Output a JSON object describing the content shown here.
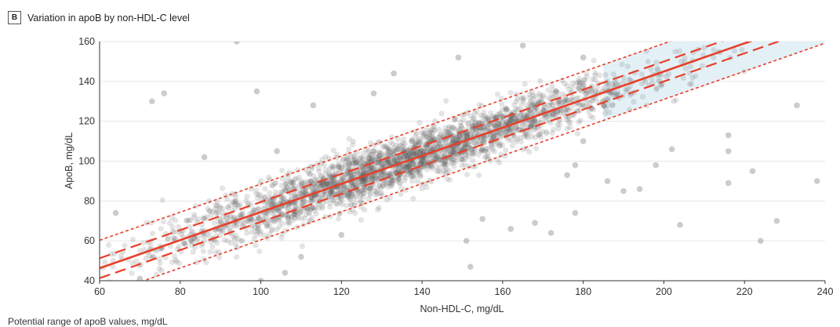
{
  "panel": {
    "letter": "B",
    "title": "Variation in apoB by non-HDL-C level"
  },
  "footer": {
    "legend_text": "Potential range of apoB values, mg/dL"
  },
  "colors": {
    "points": "#555555",
    "fit_line": "#e8402a",
    "shaded_band": "#e3f1f7",
    "grid": "#e6e6e6"
  },
  "chart_data": {
    "type": "scatter",
    "xlabel": "Non-HDL-C, mg/dL",
    "ylabel": "ApoB, mg/dL",
    "xlim": [
      60,
      240
    ],
    "ylim": [
      40,
      160
    ],
    "xticks": [
      "60",
      "80",
      "100",
      "120",
      "140",
      "160",
      "180",
      "200",
      "220",
      "240"
    ],
    "yticks": [
      "40",
      "60",
      "80",
      "100",
      "120",
      "140",
      "160"
    ],
    "grid": "horizontal",
    "fit_line": {
      "slope": 0.705,
      "intercept": 4
    },
    "inner_interval": {
      "offset": 5
    },
    "outer_interval": {
      "offset": 14
    },
    "shaded_band": {
      "x_from": 185,
      "x_to": 240
    },
    "point_cloud": {
      "x_min": 60,
      "x_max": 240,
      "x_center": 135,
      "x_sd": 30,
      "residual_sd": 6.5,
      "outliers": [
        [
          73,
          130
        ],
        [
          76,
          134
        ],
        [
          94,
          160
        ],
        [
          99,
          135
        ],
        [
          104,
          105
        ],
        [
          113,
          128
        ],
        [
          120,
          63
        ],
        [
          128,
          134
        ],
        [
          133,
          144
        ],
        [
          149,
          152
        ],
        [
          151,
          60
        ],
        [
          152,
          47
        ],
        [
          162,
          66
        ],
        [
          165,
          158
        ],
        [
          172,
          64
        ],
        [
          176,
          93
        ],
        [
          178,
          98
        ],
        [
          178,
          74
        ],
        [
          180,
          152
        ],
        [
          186,
          90
        ],
        [
          194,
          86
        ],
        [
          198,
          98
        ],
        [
          202,
          106
        ],
        [
          204,
          68
        ],
        [
          216,
          105
        ],
        [
          216,
          89
        ],
        [
          216,
          113
        ],
        [
          222,
          95
        ],
        [
          224,
          60
        ],
        [
          228,
          70
        ],
        [
          233,
          128
        ],
        [
          238,
          90
        ],
        [
          64,
          74
        ],
        [
          86,
          102
        ],
        [
          70,
          41
        ],
        [
          100,
          40
        ],
        [
          106,
          44
        ],
        [
          110,
          52
        ],
        [
          155,
          71
        ],
        [
          168,
          69
        ],
        [
          180,
          110
        ],
        [
          190,
          85
        ]
      ]
    }
  }
}
